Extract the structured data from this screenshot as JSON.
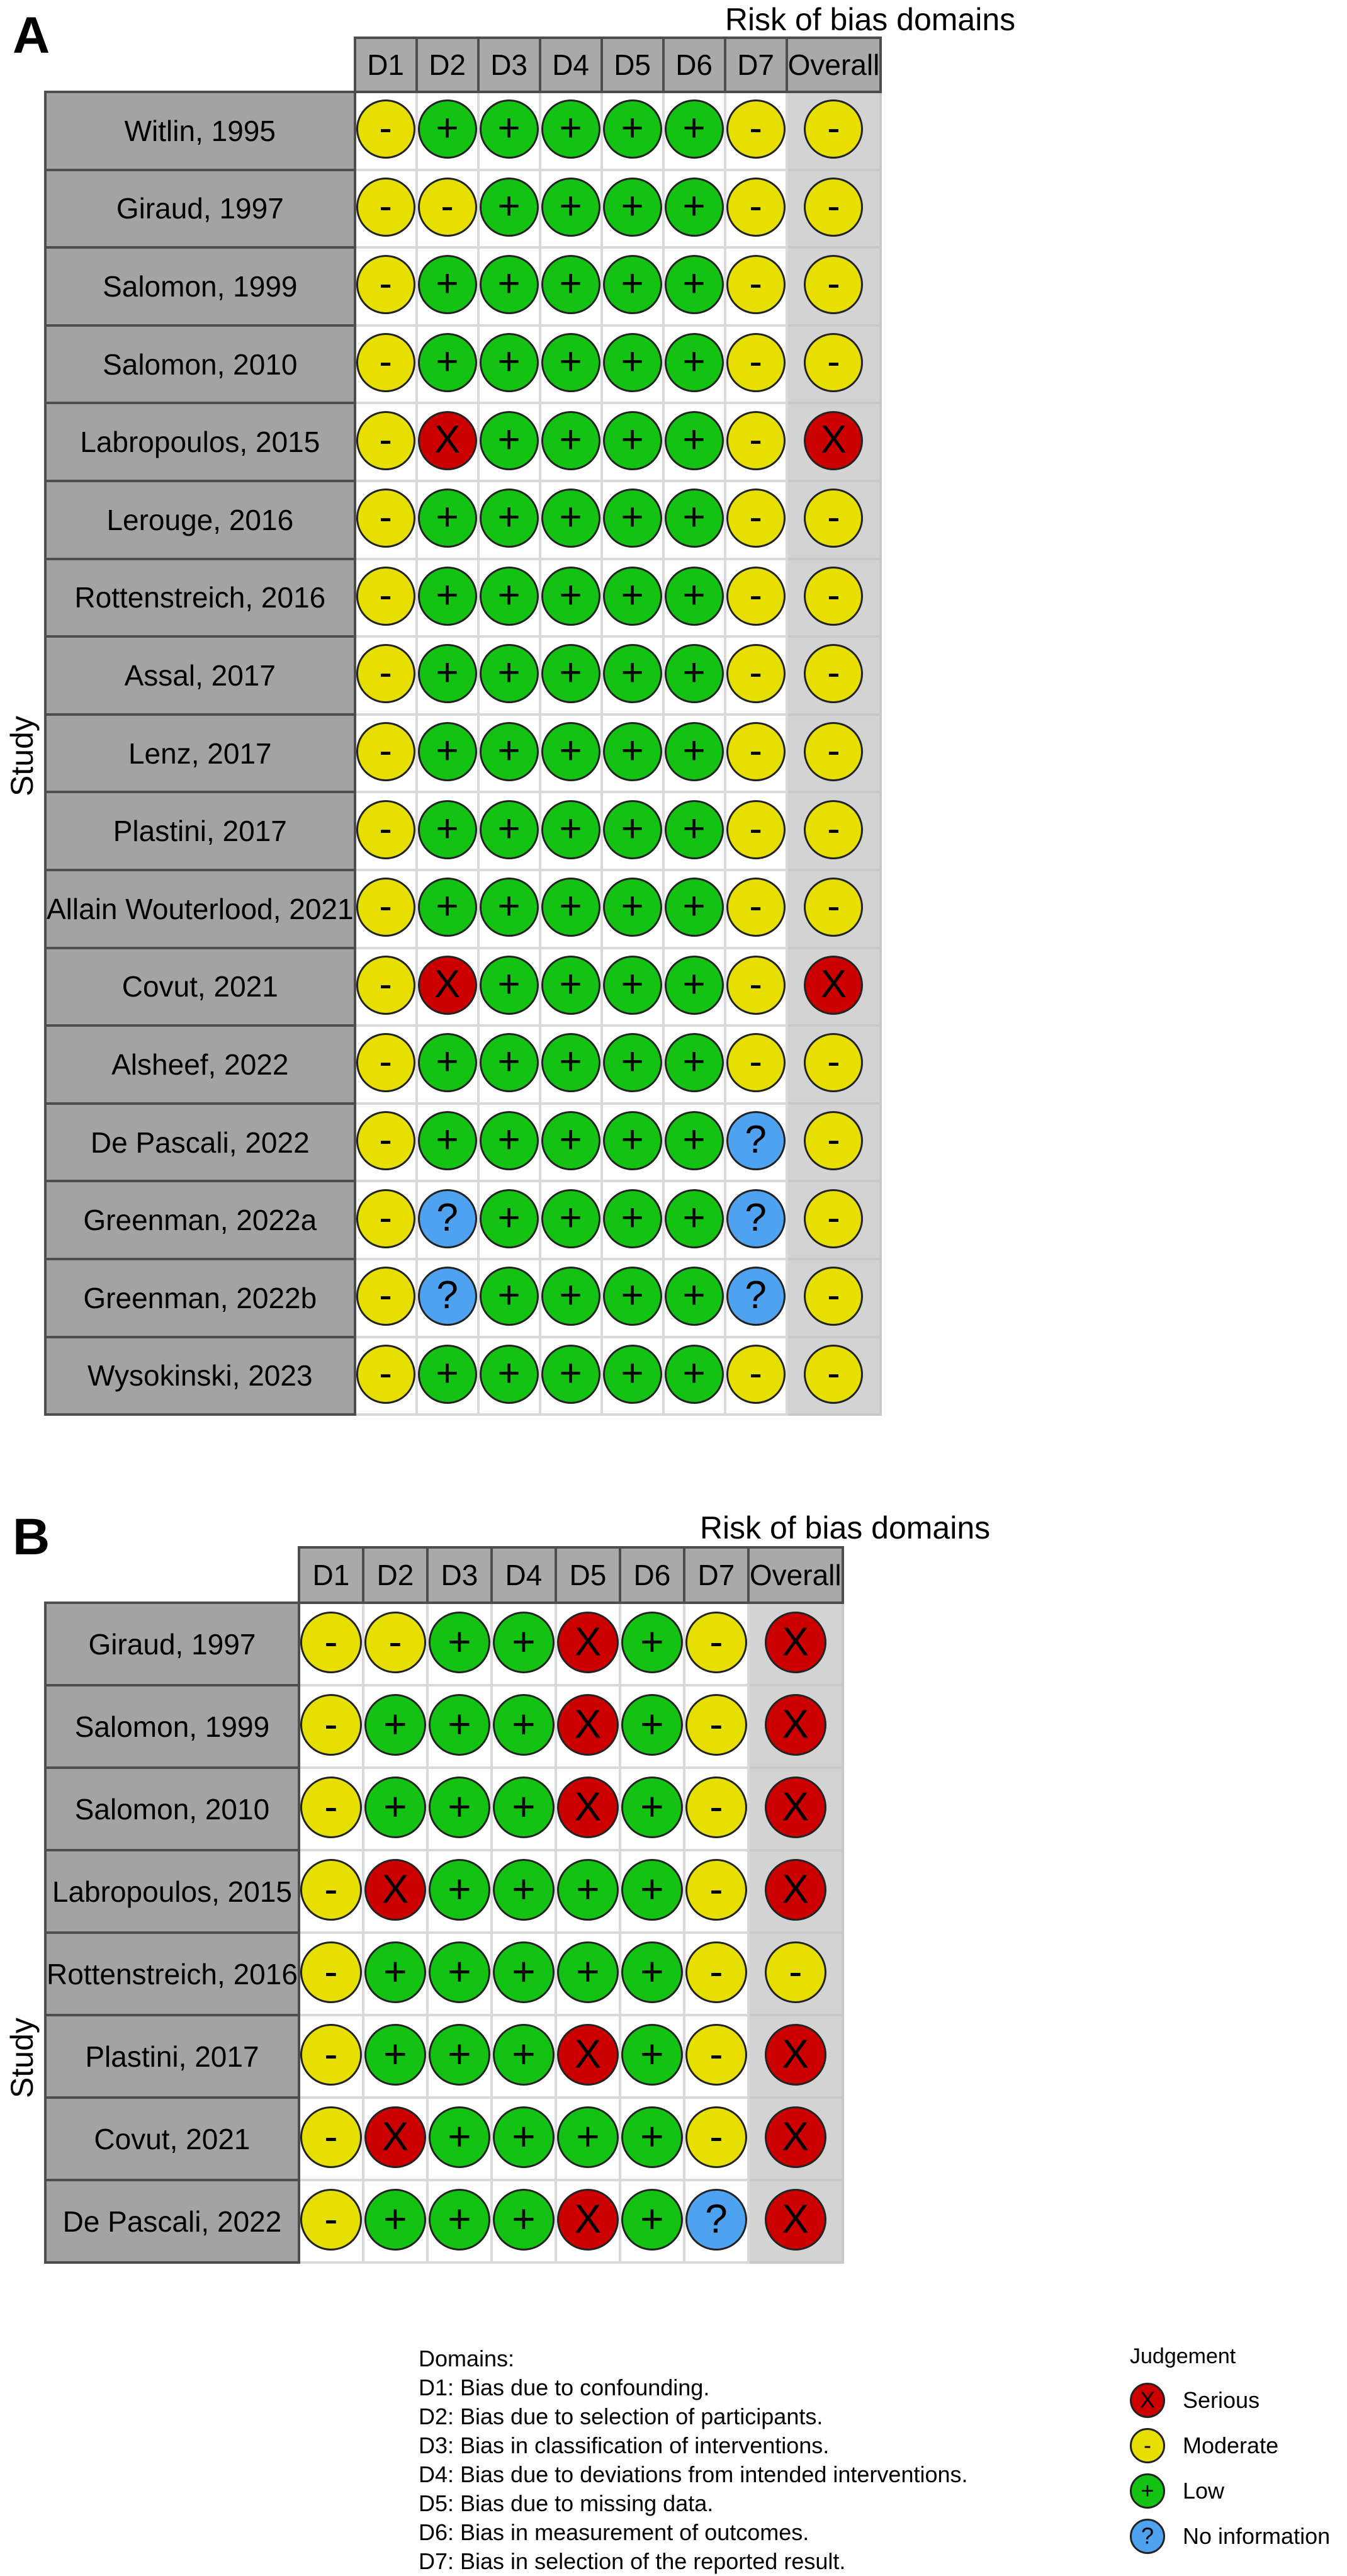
{
  "colors": {
    "Serious": "#cc0000",
    "Moderate": "#e6df00",
    "Low": "#14c214",
    "No information": "#4ea2f0"
  },
  "symbols": {
    "Serious": "X",
    "Moderate": "-",
    "Low": "+",
    "No information": "?"
  },
  "code_map": {
    "S": "Serious",
    "M": "Moderate",
    "L": "Low",
    "N": "No information"
  },
  "domains": [
    "D1",
    "D2",
    "D3",
    "D4",
    "D5",
    "D6",
    "D7",
    "Overall"
  ],
  "domains_title": "Risk of bias domains",
  "study_axis_label": "Study",
  "panels": [
    {
      "label": "A",
      "rows": [
        {
          "study": "Witlin, 1995",
          "j": [
            "M",
            "L",
            "L",
            "L",
            "L",
            "L",
            "M",
            "M"
          ]
        },
        {
          "study": "Giraud, 1997",
          "j": [
            "M",
            "M",
            "L",
            "L",
            "L",
            "L",
            "M",
            "M"
          ]
        },
        {
          "study": "Salomon, 1999",
          "j": [
            "M",
            "L",
            "L",
            "L",
            "L",
            "L",
            "M",
            "M"
          ]
        },
        {
          "study": "Salomon, 2010",
          "j": [
            "M",
            "L",
            "L",
            "L",
            "L",
            "L",
            "M",
            "M"
          ]
        },
        {
          "study": "Labropoulos, 2015",
          "j": [
            "M",
            "S",
            "L",
            "L",
            "L",
            "L",
            "M",
            "S"
          ]
        },
        {
          "study": "Lerouge, 2016",
          "j": [
            "M",
            "L",
            "L",
            "L",
            "L",
            "L",
            "M",
            "M"
          ]
        },
        {
          "study": "Rottenstreich, 2016",
          "j": [
            "M",
            "L",
            "L",
            "L",
            "L",
            "L",
            "M",
            "M"
          ]
        },
        {
          "study": "Assal, 2017",
          "j": [
            "M",
            "L",
            "L",
            "L",
            "L",
            "L",
            "M",
            "M"
          ]
        },
        {
          "study": "Lenz, 2017",
          "j": [
            "M",
            "L",
            "L",
            "L",
            "L",
            "L",
            "M",
            "M"
          ]
        },
        {
          "study": "Plastini, 2017",
          "j": [
            "M",
            "L",
            "L",
            "L",
            "L",
            "L",
            "M",
            "M"
          ]
        },
        {
          "study": "Allain Wouterlood, 2021",
          "j": [
            "M",
            "L",
            "L",
            "L",
            "L",
            "L",
            "M",
            "M"
          ]
        },
        {
          "study": "Covut, 2021",
          "j": [
            "M",
            "S",
            "L",
            "L",
            "L",
            "L",
            "M",
            "S"
          ]
        },
        {
          "study": "Alsheef, 2022",
          "j": [
            "M",
            "L",
            "L",
            "L",
            "L",
            "L",
            "M",
            "M"
          ]
        },
        {
          "study": "De Pascali, 2022",
          "j": [
            "M",
            "L",
            "L",
            "L",
            "L",
            "L",
            "N",
            "M"
          ]
        },
        {
          "study": "Greenman, 2022a",
          "j": [
            "M",
            "N",
            "L",
            "L",
            "L",
            "L",
            "N",
            "M"
          ]
        },
        {
          "study": "Greenman, 2022b",
          "j": [
            "M",
            "N",
            "L",
            "L",
            "L",
            "L",
            "N",
            "M"
          ]
        },
        {
          "study": "Wysokinski, 2023",
          "j": [
            "M",
            "L",
            "L",
            "L",
            "L",
            "L",
            "M",
            "M"
          ]
        }
      ]
    },
    {
      "label": "B",
      "rows": [
        {
          "study": "Giraud, 1997",
          "j": [
            "M",
            "M",
            "L",
            "L",
            "S",
            "L",
            "M",
            "S"
          ]
        },
        {
          "study": "Salomon, 1999",
          "j": [
            "M",
            "L",
            "L",
            "L",
            "S",
            "L",
            "M",
            "S"
          ]
        },
        {
          "study": "Salomon, 2010",
          "j": [
            "M",
            "L",
            "L",
            "L",
            "S",
            "L",
            "M",
            "S"
          ]
        },
        {
          "study": "Labropoulos, 2015",
          "j": [
            "M",
            "S",
            "L",
            "L",
            "L",
            "L",
            "M",
            "S"
          ]
        },
        {
          "study": "Rottenstreich, 2016",
          "j": [
            "M",
            "L",
            "L",
            "L",
            "L",
            "L",
            "M",
            "M"
          ]
        },
        {
          "study": "Plastini, 2017",
          "j": [
            "M",
            "L",
            "L",
            "L",
            "S",
            "L",
            "M",
            "S"
          ]
        },
        {
          "study": "Covut, 2021",
          "j": [
            "M",
            "S",
            "L",
            "L",
            "L",
            "L",
            "M",
            "S"
          ]
        },
        {
          "study": "De Pascali, 2022",
          "j": [
            "M",
            "L",
            "L",
            "L",
            "S",
            "L",
            "N",
            "S"
          ]
        }
      ]
    }
  ],
  "legend": {
    "domains_heading": "Domains:",
    "domain_lines": [
      "D1: Bias due to confounding.",
      "D2: Bias due to selection of participants.",
      "D3: Bias in classification of interventions.",
      "D4: Bias due to deviations from intended interventions.",
      "D5: Bias due to missing data.",
      "D6: Bias in measurement of outcomes.",
      "D7: Bias in selection of the reported result."
    ],
    "judgement_heading": "Judgement",
    "judgements": [
      "Serious",
      "Moderate",
      "Low",
      "No information"
    ]
  }
}
